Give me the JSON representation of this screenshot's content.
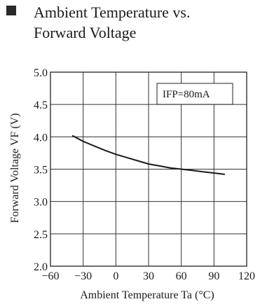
{
  "chart_data": {
    "type": "line",
    "title_line1": "Ambient Temperature vs.",
    "title_line2": "Forward Voltage",
    "xlabel": "Ambient Temperature Ta (°C)",
    "ylabel": "Forward Voltage VF (V)",
    "annotation": "IFP=80mA",
    "xlim": [
      -60,
      120
    ],
    "ylim": [
      2.0,
      5.0
    ],
    "x_ticks": [
      -60,
      -30,
      0,
      30,
      60,
      90,
      120
    ],
    "x_tick_labels": [
      "−60",
      "−30",
      "0",
      "30",
      "60",
      "90",
      "120"
    ],
    "y_ticks": [
      2.0,
      2.5,
      3.0,
      3.5,
      4.0,
      4.5,
      5.0
    ],
    "y_tick_labels": [
      "2.0",
      "2.5",
      "3.0",
      "3.5",
      "4.0",
      "4.5",
      "5.0"
    ],
    "grid": true,
    "series": [
      {
        "x": [
          -40,
          -30,
          -20,
          -10,
          0,
          10,
          20,
          30,
          40,
          50,
          60,
          70,
          80,
          90,
          100
        ],
        "y": [
          4.02,
          3.93,
          3.86,
          3.79,
          3.73,
          3.68,
          3.63,
          3.58,
          3.55,
          3.52,
          3.5,
          3.48,
          3.46,
          3.44,
          3.42
        ]
      }
    ],
    "colors": {
      "line": "#1a1a1a",
      "grid": "#333333",
      "bullet": "#2a2a2a"
    }
  }
}
